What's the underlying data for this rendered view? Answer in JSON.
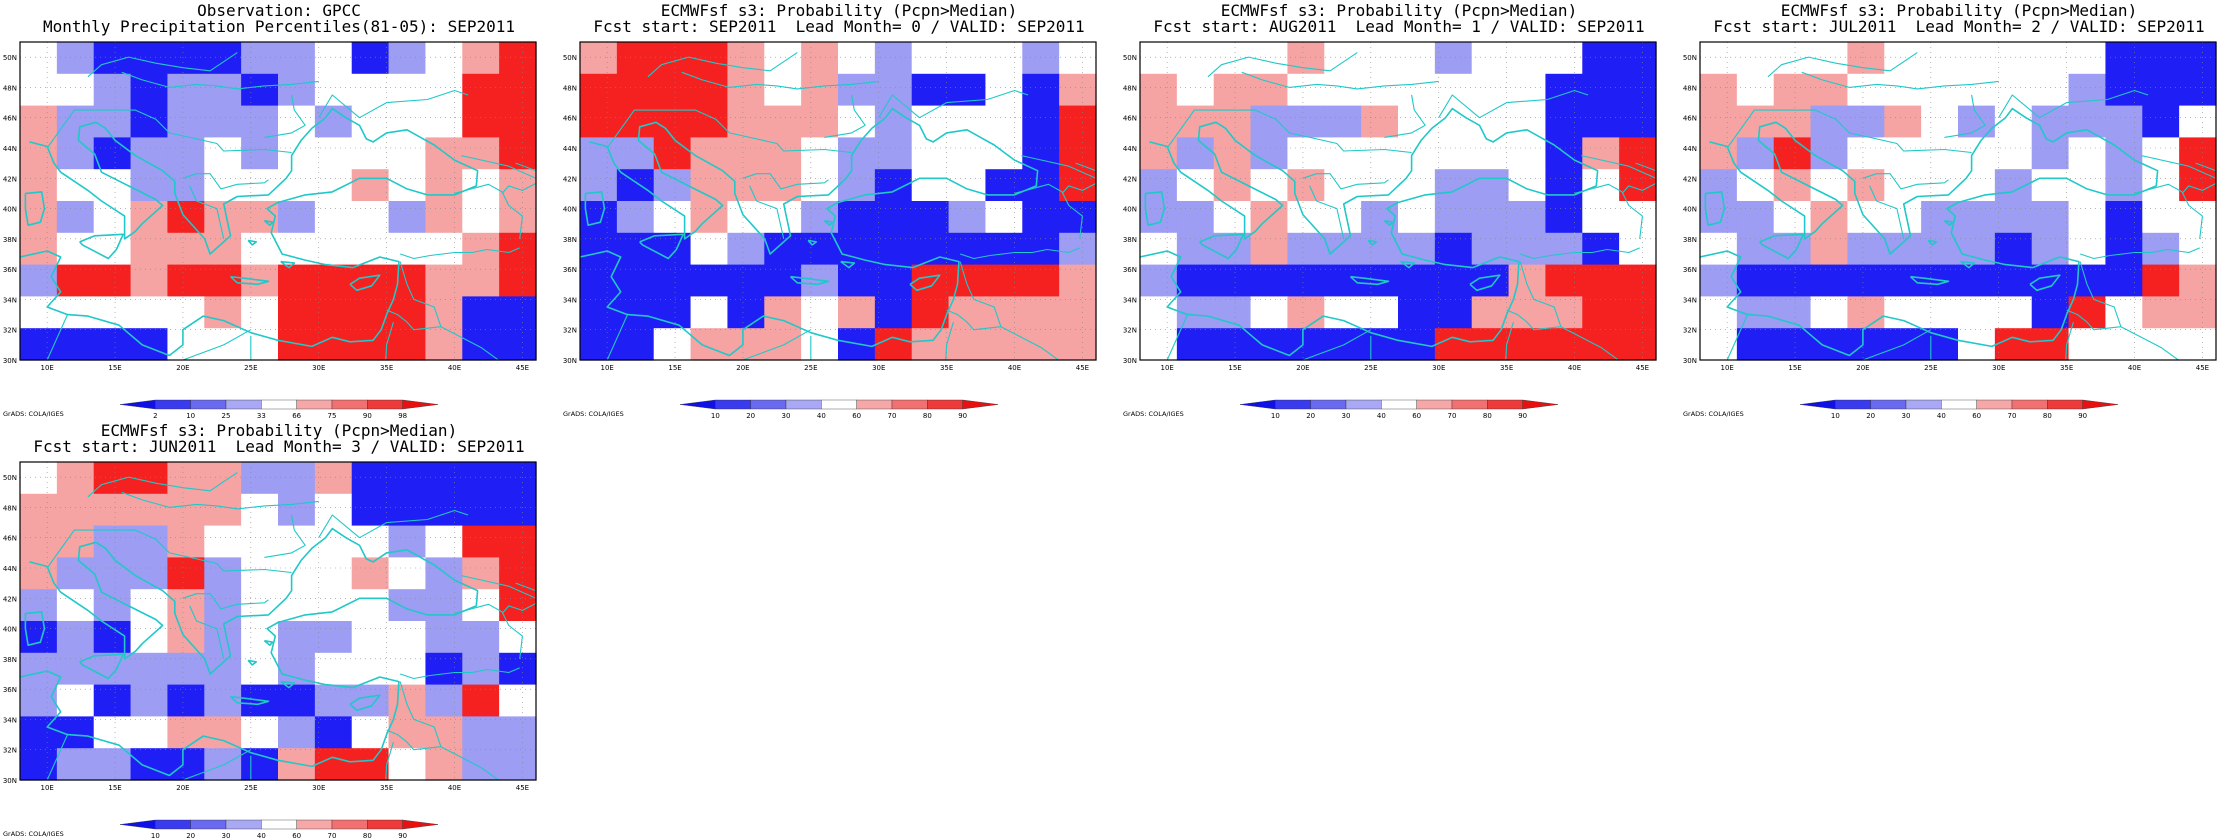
{
  "panels": [
    {
      "id": "obs",
      "title1": "Observation: GPCC",
      "title2": "Monthly Precipitation Percentiles(81-05): SEP2011",
      "cbar_labels": [
        "2",
        "10",
        "25",
        "33",
        "66",
        "75",
        "90",
        "98"
      ],
      "grid": [
        [
          "w",
          "lb",
          "b",
          "b",
          "b",
          "b",
          "lb",
          "lb",
          "w",
          "b",
          "lb",
          "w",
          "lr",
          "r"
        ],
        [
          "w",
          "w",
          "lb",
          "b",
          "lb",
          "lb",
          "b",
          "lb",
          "w",
          "w",
          "w",
          "w",
          "r",
          "r"
        ],
        [
          "lr",
          "lb",
          "lb",
          "b",
          "lb",
          "lb",
          "lb",
          "w",
          "lb",
          "w",
          "w",
          "w",
          "r",
          "r"
        ],
        [
          "lr",
          "lb",
          "b",
          "lb",
          "lb",
          "w",
          "lb",
          "w",
          "w",
          "w",
          "w",
          "lr",
          "lr",
          "r"
        ],
        [
          "lr",
          "w",
          "w",
          "lb",
          "lb",
          "w",
          "w",
          "w",
          "w",
          "lr",
          "w",
          "lr",
          "w",
          "lr"
        ],
        [
          "lr",
          "lb",
          "w",
          "lr",
          "r",
          "lr",
          "lr",
          "lb",
          "w",
          "w",
          "lb",
          "lr",
          "w",
          "lr"
        ],
        [
          "lr",
          "w",
          "w",
          "lr",
          "lr",
          "lr",
          "w",
          "w",
          "w",
          "w",
          "w",
          "w",
          "lr",
          "r"
        ],
        [
          "lb",
          "r",
          "r",
          "lr",
          "r",
          "r",
          "lr",
          "r",
          "r",
          "r",
          "r",
          "lr",
          "lr",
          "r"
        ],
        [
          "w",
          "w",
          "w",
          "w",
          "w",
          "lr",
          "w",
          "r",
          "r",
          "r",
          "r",
          "lr",
          "b",
          "b"
        ],
        [
          "b",
          "b",
          "b",
          "b",
          "w",
          "w",
          "w",
          "r",
          "r",
          "r",
          "r",
          "lr",
          "b",
          "b"
        ]
      ]
    },
    {
      "id": "lead0",
      "title1": "ECMWFsf s3: Probability (Pcpn>Median)",
      "title2": "Fcst start: SEP2011  Lead Month= 0 / VALID: SEP2011",
      "cbar_labels": [
        "10",
        "20",
        "30",
        "40",
        "60",
        "70",
        "80",
        "90"
      ],
      "grid": [
        [
          "lr",
          "r",
          "r",
          "r",
          "lr",
          "w",
          "lr",
          "w",
          "lb",
          "w",
          "w",
          "w",
          "lb",
          "w"
        ],
        [
          "r",
          "r",
          "r",
          "r",
          "lr",
          "w",
          "lr",
          "lb",
          "lb",
          "b",
          "b",
          "w",
          "b",
          "lr"
        ],
        [
          "r",
          "r",
          "r",
          "r",
          "lr",
          "lr",
          "lr",
          "w",
          "lb",
          "w",
          "w",
          "w",
          "b",
          "r"
        ],
        [
          "lb",
          "lb",
          "r",
          "lr",
          "lr",
          "lr",
          "w",
          "lb",
          "lb",
          "w",
          "w",
          "w",
          "b",
          "r"
        ],
        [
          "lb",
          "b",
          "lb",
          "lr",
          "lr",
          "lr",
          "w",
          "lb",
          "b",
          "w",
          "w",
          "b",
          "b",
          "r"
        ],
        [
          "b",
          "lb",
          "w",
          "lr",
          "w",
          "w",
          "lb",
          "b",
          "b",
          "b",
          "lb",
          "w",
          "b",
          "b"
        ],
        [
          "b",
          "b",
          "b",
          "w",
          "lb",
          "b",
          "b",
          "b",
          "b",
          "b",
          "b",
          "b",
          "b",
          "lb"
        ],
        [
          "b",
          "b",
          "b",
          "b",
          "b",
          "b",
          "lb",
          "b",
          "b",
          "r",
          "r",
          "r",
          "r",
          "lr"
        ],
        [
          "b",
          "b",
          "b",
          "w",
          "b",
          "lr",
          "w",
          "lr",
          "b",
          "r",
          "lr",
          "lr",
          "lr",
          "lr"
        ],
        [
          "b",
          "b",
          "w",
          "lr",
          "lr",
          "lr",
          "w",
          "b",
          "r",
          "lr",
          "lr",
          "lr",
          "lr",
          "lr"
        ]
      ]
    },
    {
      "id": "lead1",
      "title1": "ECMWFsf s3: Probability (Pcpn>Median)",
      "title2": "Fcst start: AUG2011  Lead Month= 1 / VALID: SEP2011",
      "cbar_labels": [
        "10",
        "20",
        "30",
        "40",
        "60",
        "70",
        "80",
        "90"
      ],
      "grid": [
        [
          "w",
          "w",
          "w",
          "w",
          "lr",
          "w",
          "w",
          "w",
          "lb",
          "w",
          "w",
          "w",
          "b",
          "b"
        ],
        [
          "lr",
          "w",
          "lr",
          "lr",
          "w",
          "w",
          "w",
          "w",
          "w",
          "w",
          "w",
          "b",
          "b",
          "b"
        ],
        [
          "lr",
          "lr",
          "lr",
          "lb",
          "lb",
          "lb",
          "lr",
          "w",
          "w",
          "w",
          "w",
          "b",
          "b",
          "b"
        ],
        [
          "lr",
          "lb",
          "lr",
          "lb",
          "w",
          "w",
          "w",
          "w",
          "w",
          "w",
          "w",
          "b",
          "lr",
          "r"
        ],
        [
          "lb",
          "w",
          "lr",
          "w",
          "lr",
          "w",
          "w",
          "w",
          "lb",
          "lb",
          "w",
          "b",
          "w",
          "r"
        ],
        [
          "lb",
          "lb",
          "w",
          "lr",
          "w",
          "w",
          "lb",
          "w",
          "lb",
          "lb",
          "lb",
          "b",
          "w",
          "w"
        ],
        [
          "w",
          "lb",
          "lb",
          "lr",
          "lb",
          "lb",
          "lb",
          "lb",
          "b",
          "lb",
          "lb",
          "lb",
          "b",
          "w"
        ],
        [
          "lb",
          "b",
          "b",
          "b",
          "b",
          "b",
          "b",
          "b",
          "b",
          "b",
          "lr",
          "r",
          "r",
          "r"
        ],
        [
          "w",
          "lb",
          "lb",
          "w",
          "lr",
          "w",
          "w",
          "b",
          "b",
          "lr",
          "lr",
          "lr",
          "r",
          "r"
        ],
        [
          "w",
          "b",
          "b",
          "b",
          "b",
          "b",
          "b",
          "b",
          "r",
          "r",
          "r",
          "r",
          "r",
          "r"
        ]
      ]
    },
    {
      "id": "lead2",
      "title1": "ECMWFsf s3: Probability (Pcpn>Median)",
      "title2": "Fcst start: JUL2011  Lead Month= 2 / VALID: SEP2011",
      "cbar_labels": [
        "10",
        "20",
        "30",
        "40",
        "60",
        "70",
        "80",
        "90"
      ],
      "grid": [
        [
          "w",
          "w",
          "w",
          "w",
          "lr",
          "w",
          "w",
          "w",
          "w",
          "w",
          "w",
          "b",
          "b",
          "b"
        ],
        [
          "lr",
          "w",
          "lr",
          "lr",
          "w",
          "w",
          "w",
          "w",
          "w",
          "w",
          "lb",
          "b",
          "b",
          "b"
        ],
        [
          "lr",
          "lr",
          "lr",
          "lb",
          "lb",
          "lr",
          "w",
          "lb",
          "w",
          "lb",
          "lb",
          "lb",
          "b",
          "w"
        ],
        [
          "lr",
          "lb",
          "r",
          "lb",
          "w",
          "w",
          "w",
          "w",
          "w",
          "lb",
          "w",
          "lb",
          "w",
          "r"
        ],
        [
          "lb",
          "w",
          "lr",
          "w",
          "lr",
          "w",
          "w",
          "w",
          "lb",
          "w",
          "w",
          "lb",
          "w",
          "r"
        ],
        [
          "lb",
          "lb",
          "w",
          "lr",
          "w",
          "w",
          "lb",
          "lb",
          "lb",
          "lb",
          "w",
          "b",
          "w",
          "w"
        ],
        [
          "w",
          "lb",
          "lb",
          "lr",
          "lb",
          "lb",
          "lb",
          "lb",
          "b",
          "lb",
          "w",
          "b",
          "lb",
          "w"
        ],
        [
          "lb",
          "b",
          "b",
          "b",
          "b",
          "b",
          "b",
          "b",
          "b",
          "b",
          "b",
          "b",
          "r",
          "lr"
        ],
        [
          "w",
          "lb",
          "lb",
          "w",
          "lr",
          "w",
          "w",
          "w",
          "w",
          "b",
          "r",
          "w",
          "lr",
          "lr"
        ],
        [
          "w",
          "b",
          "b",
          "b",
          "b",
          "b",
          "b",
          "w",
          "r",
          "r",
          "w",
          "w",
          "w",
          "w"
        ]
      ]
    },
    {
      "id": "lead3",
      "title1": "ECMWFsf s3: Probability (Pcpn>Median)",
      "title2": "Fcst start: JUN2011  Lead Month= 3 / VALID: SEP2011",
      "cbar_labels": [
        "10",
        "20",
        "30",
        "40",
        "60",
        "70",
        "80",
        "90"
      ],
      "grid": [
        [
          "w",
          "lr",
          "r",
          "r",
          "lr",
          "lr",
          "lb",
          "lb",
          "lr",
          "b",
          "b",
          "b",
          "b",
          "b"
        ],
        [
          "lr",
          "lr",
          "lr",
          "lr",
          "lr",
          "lr",
          "w",
          "lb",
          "w",
          "b",
          "b",
          "b",
          "b",
          "b"
        ],
        [
          "lr",
          "lr",
          "lb",
          "lb",
          "lr",
          "w",
          "w",
          "w",
          "w",
          "w",
          "lb",
          "w",
          "r",
          "r"
        ],
        [
          "lr",
          "lb",
          "lb",
          "lb",
          "r",
          "lb",
          "w",
          "w",
          "w",
          "lr",
          "w",
          "lb",
          "lr",
          "r"
        ],
        [
          "lb",
          "w",
          "lb",
          "w",
          "lr",
          "lb",
          "w",
          "w",
          "w",
          "w",
          "lb",
          "lb",
          "w",
          "r"
        ],
        [
          "b",
          "lb",
          "b",
          "w",
          "lr",
          "lb",
          "w",
          "lb",
          "lb",
          "w",
          "w",
          "lb",
          "lb",
          "w"
        ],
        [
          "lb",
          "lb",
          "lb",
          "lb",
          "lb",
          "lb",
          "w",
          "lb",
          "w",
          "w",
          "w",
          "b",
          "lb",
          "b"
        ],
        [
          "lb",
          "w",
          "b",
          "lb",
          "b",
          "lb",
          "b",
          "b",
          "lb",
          "lb",
          "lr",
          "lb",
          "r",
          "w"
        ],
        [
          "b",
          "b",
          "w",
          "w",
          "lr",
          "lr",
          "w",
          "lb",
          "b",
          "w",
          "lr",
          "lr",
          "lb",
          "lb"
        ],
        [
          "b",
          "lb",
          "lb",
          "b",
          "b",
          "lb",
          "b",
          "lr",
          "r",
          "r",
          "w",
          "lr",
          "lb",
          "lb"
        ]
      ]
    }
  ],
  "map": {
    "lat_labels": [
      "50N",
      "48N",
      "46N",
      "44N",
      "42N",
      "40N",
      "38N",
      "36N",
      "34N",
      "32N",
      "30N"
    ],
    "lon_labels": [
      "10E",
      "15E",
      "20E",
      "25E",
      "30E",
      "35E",
      "40E",
      "45E"
    ]
  },
  "footer": "GrADS: COLA/IGES",
  "colors": {
    "b": "#1f1ff5",
    "lb": "#9d9df3",
    "w": "#ffffff",
    "lr": "#f5a3a3",
    "r": "#f52020",
    "coast": "#20c8c8",
    "cbar": [
      "#1010e8",
      "#3a3aee",
      "#6a6af0",
      "#a8a8f4",
      "#f6a8a8",
      "#f37070",
      "#ef3a3a",
      "#e81010"
    ]
  }
}
